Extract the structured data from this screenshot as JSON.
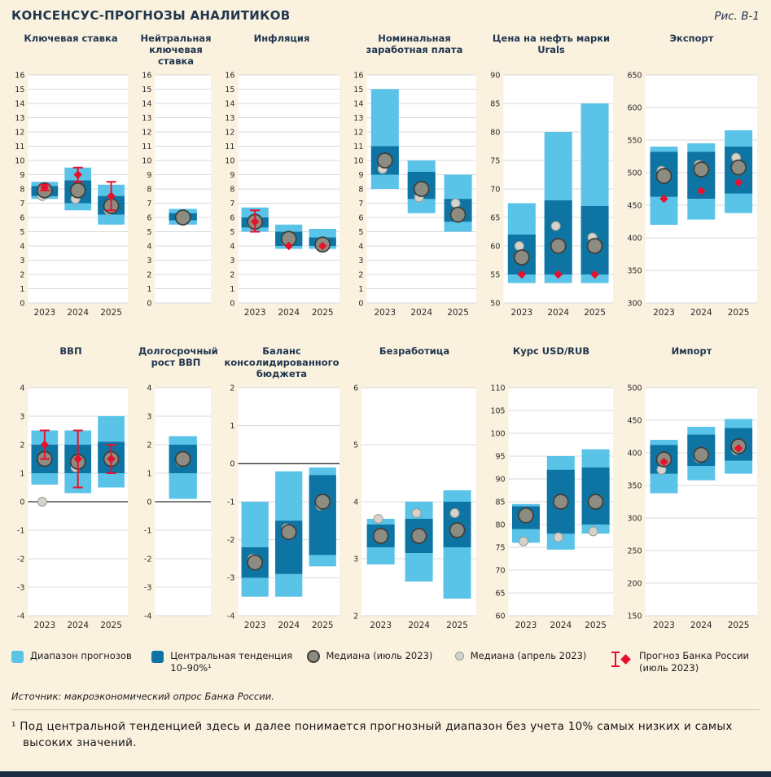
{
  "header": {
    "title": "КОНСЕНСУС-ПРОГНОЗЫ АНАЛИТИКОВ",
    "figure_label": "Рис. В-1"
  },
  "colors": {
    "background": "#fbf1df",
    "range_light": "#5ac3e8",
    "central_dark": "#0e74a4",
    "median_jul_fill": "#8c8c83",
    "median_jul_stroke": "#3f3f39",
    "median_apr_fill": "#d3d3cc",
    "median_apr_stroke": "#9a9a94",
    "cbr_red": "#e8112d",
    "title_navy": "#20374e",
    "grid": "#d8d8d8",
    "zero_line": "#2f2f2f",
    "footer_bar": "#1b2c40",
    "plot_bg": "#ffffff"
  },
  "legend": {
    "range": "Диапазон прогнозов",
    "central": "Центральная тенденция 10–90%¹",
    "median_jul": "Медиана (июль 2023)",
    "median_apr": "Медиана (апрель 2023)",
    "cbr": "Прогноз Банка России (июль 2023)"
  },
  "source": "Источник: макроэкономический опрос Банка России.",
  "footnote": "¹ Под центральной тенденцией здесь и далее понимается прогнозный диапазон без учета 10% самых низких и самых высоких значений.",
  "chart_data": [
    {
      "type": "range-bar",
      "title": "Ключевая ставка",
      "ylim": [
        0,
        16
      ],
      "ytick": 1,
      "categories": [
        "2023",
        "2024",
        "2025"
      ],
      "series": [
        {
          "category": "2023",
          "range": [
            7.3,
            8.5
          ],
          "central": [
            7.5,
            8.2
          ],
          "median_jul": 7.9,
          "median_apr": 7.5,
          "cbr": {
            "low": 7.9,
            "high": 8.3,
            "mid": 8.1
          }
        },
        {
          "category": "2024",
          "range": [
            6.5,
            9.5
          ],
          "central": [
            7.0,
            8.6
          ],
          "median_jul": 7.9,
          "median_apr": 7.3,
          "cbr": {
            "low": 8.5,
            "high": 9.5,
            "mid": 9.0
          }
        },
        {
          "category": "2025",
          "range": [
            5.5,
            8.3
          ],
          "central": [
            6.2,
            7.5
          ],
          "median_jul": 6.8,
          "median_apr": 6.5,
          "cbr": {
            "low": 6.5,
            "high": 8.5,
            "mid": 7.5
          }
        }
      ]
    },
    {
      "type": "range-bar",
      "title": "Нейтральная ключевая ставка",
      "ylim": [
        0,
        16
      ],
      "ytick": 1,
      "categories": [],
      "series": [
        {
          "category": "",
          "range": [
            5.5,
            6.6
          ],
          "central": [
            5.8,
            6.3
          ],
          "median_jul": 6.0,
          "median_apr": 6.0,
          "cbr": null
        }
      ]
    },
    {
      "type": "range-bar",
      "title": "Инфляция",
      "ylim": [
        0,
        16
      ],
      "ytick": 1,
      "categories": [
        "2023",
        "2024",
        "2025"
      ],
      "series": [
        {
          "category": "2023",
          "range": [
            5.0,
            6.7
          ],
          "central": [
            5.3,
            6.0
          ],
          "median_jul": 5.7,
          "median_apr": 5.5,
          "cbr": {
            "low": 5.0,
            "high": 6.5,
            "mid": 5.7
          }
        },
        {
          "category": "2024",
          "range": [
            3.8,
            5.5
          ],
          "central": [
            4.0,
            5.0
          ],
          "median_jul": 4.5,
          "median_apr": 4.3,
          "cbr": {
            "low": null,
            "high": null,
            "mid": 4.0
          }
        },
        {
          "category": "2025",
          "range": [
            3.8,
            5.2
          ],
          "central": [
            4.0,
            4.6
          ],
          "median_jul": 4.1,
          "median_apr": 4.0,
          "cbr": {
            "low": null,
            "high": null,
            "mid": 4.0
          }
        }
      ]
    },
    {
      "type": "range-bar",
      "title": "Номинальная заработная плата",
      "ylim": [
        0,
        16
      ],
      "ytick": 1,
      "categories": [
        "2023",
        "2024",
        "2025"
      ],
      "series": [
        {
          "category": "2023",
          "range": [
            8.0,
            15.0
          ],
          "central": [
            9.0,
            11.0
          ],
          "median_jul": 10.0,
          "median_apr": 9.4,
          "cbr": null
        },
        {
          "category": "2024",
          "range": [
            6.3,
            10.0
          ],
          "central": [
            7.3,
            9.2
          ],
          "median_jul": 8.0,
          "median_apr": 7.4,
          "cbr": null
        },
        {
          "category": "2025",
          "range": [
            5.0,
            9.0
          ],
          "central": [
            5.7,
            7.3
          ],
          "median_jul": 6.2,
          "median_apr": 7.0,
          "cbr": null
        }
      ]
    },
    {
      "type": "range-bar",
      "title": "Цена на нефть марки Urals",
      "ylim": [
        50,
        90
      ],
      "ytick": 5,
      "categories": [
        "2023",
        "2024",
        "2025"
      ],
      "series": [
        {
          "category": "2023",
          "range": [
            53.5,
            67.5
          ],
          "central": [
            55.0,
            62.0
          ],
          "median_jul": 58.0,
          "median_apr": 60.0,
          "cbr": {
            "low": null,
            "high": null,
            "mid": 55.0
          }
        },
        {
          "category": "2024",
          "range": [
            53.5,
            80.0
          ],
          "central": [
            55.0,
            68.0
          ],
          "median_jul": 60.0,
          "median_apr": 63.5,
          "cbr": {
            "low": null,
            "high": null,
            "mid": 55.0
          }
        },
        {
          "category": "2025",
          "range": [
            53.5,
            85.0
          ],
          "central": [
            55.0,
            67.0
          ],
          "median_jul": 60.0,
          "median_apr": 61.5,
          "cbr": {
            "low": null,
            "high": null,
            "mid": 55.0
          }
        }
      ]
    },
    {
      "type": "range-bar",
      "title": "Экспорт",
      "ylim": [
        300,
        650
      ],
      "ytick": 50,
      "categories": [
        "2023",
        "2024",
        "2025"
      ],
      "series": [
        {
          "category": "2023",
          "range": [
            420,
            540
          ],
          "central": [
            463,
            532
          ],
          "median_jul": 495,
          "median_apr": 503,
          "cbr": {
            "low": null,
            "high": null,
            "mid": 460
          }
        },
        {
          "category": "2024",
          "range": [
            428,
            545
          ],
          "central": [
            460,
            532
          ],
          "median_jul": 505,
          "median_apr": 512,
          "cbr": {
            "low": null,
            "high": null,
            "mid": 472
          }
        },
        {
          "category": "2025",
          "range": [
            438,
            565
          ],
          "central": [
            468,
            540
          ],
          "median_jul": 508,
          "median_apr": 523,
          "cbr": {
            "low": null,
            "high": null,
            "mid": 485
          }
        }
      ]
    },
    {
      "type": "range-bar",
      "title": "ВВП",
      "ylim": [
        -4,
        4
      ],
      "ytick": 1,
      "categories": [
        "2023",
        "2024",
        "2025"
      ],
      "series": [
        {
          "category": "2023",
          "range": [
            0.6,
            2.5
          ],
          "central": [
            1.0,
            2.0
          ],
          "median_jul": 1.5,
          "median_apr": 0.0,
          "cbr": {
            "low": 1.5,
            "high": 2.5,
            "mid": 2.0
          }
        },
        {
          "category": "2024",
          "range": [
            0.3,
            2.5
          ],
          "central": [
            1.0,
            2.0
          ],
          "median_jul": 1.4,
          "median_apr": 1.2,
          "cbr": {
            "low": 0.5,
            "high": 2.5,
            "mid": 1.5
          }
        },
        {
          "category": "2025",
          "range": [
            0.5,
            3.0
          ],
          "central": [
            1.0,
            2.1
          ],
          "median_jul": 1.5,
          "median_apr": 1.5,
          "cbr": {
            "low": 1.0,
            "high": 2.0,
            "mid": 1.5
          }
        }
      ]
    },
    {
      "type": "range-bar",
      "title": "Долгосрочный рост ВВП",
      "ylim": [
        -4,
        4
      ],
      "ytick": 1,
      "categories": [],
      "series": [
        {
          "category": "",
          "range": [
            0.1,
            2.3
          ],
          "central": [
            1.0,
            2.0
          ],
          "median_jul": 1.5,
          "median_apr": 1.4,
          "cbr": null
        }
      ]
    },
    {
      "type": "range-bar",
      "title": "Баланс консолидированного бюджета",
      "ylim": [
        -4,
        2
      ],
      "ytick": 1,
      "categories": [
        "2023",
        "2024",
        "2025"
      ],
      "series": [
        {
          "category": "2023",
          "range": [
            -3.5,
            -1.0
          ],
          "central": [
            -3.0,
            -2.2
          ],
          "median_jul": -2.6,
          "median_apr": -2.5,
          "cbr": null
        },
        {
          "category": "2024",
          "range": [
            -3.5,
            -0.2
          ],
          "central": [
            -2.9,
            -1.5
          ],
          "median_jul": -1.8,
          "median_apr": -1.7,
          "cbr": null
        },
        {
          "category": "2025",
          "range": [
            -2.7,
            -0.1
          ],
          "central": [
            -2.4,
            -0.3
          ],
          "median_jul": -1.0,
          "median_apr": -1.1,
          "cbr": null
        }
      ]
    },
    {
      "type": "range-bar",
      "title": "Безработица",
      "ylim": [
        2,
        6
      ],
      "ytick": 1,
      "categories": [
        "2023",
        "2024",
        "2025"
      ],
      "series": [
        {
          "category": "2023",
          "range": [
            2.9,
            3.7
          ],
          "central": [
            3.2,
            3.6
          ],
          "median_jul": 3.4,
          "median_apr": 3.7,
          "cbr": null
        },
        {
          "category": "2024",
          "range": [
            2.6,
            4.0
          ],
          "central": [
            3.1,
            3.7
          ],
          "median_jul": 3.4,
          "median_apr": 3.8,
          "cbr": null
        },
        {
          "category": "2025",
          "range": [
            2.3,
            4.2
          ],
          "central": [
            3.2,
            4.0
          ],
          "median_jul": 3.5,
          "median_apr": 3.8,
          "cbr": null
        }
      ]
    },
    {
      "type": "range-bar",
      "title": "Курс USD/RUB",
      "ylim": [
        60,
        110
      ],
      "ytick": 5,
      "categories": [
        "2023",
        "2024",
        "2025"
      ],
      "series": [
        {
          "category": "2023",
          "range": [
            76.0,
            84.5
          ],
          "central": [
            79.0,
            84.0
          ],
          "median_jul": 82.0,
          "median_apr": 76.3,
          "cbr": null
        },
        {
          "category": "2024",
          "range": [
            74.5,
            95.0
          ],
          "central": [
            78.0,
            92.0
          ],
          "median_jul": 85.0,
          "median_apr": 77.2,
          "cbr": null
        },
        {
          "category": "2025",
          "range": [
            78.0,
            96.5
          ],
          "central": [
            80.0,
            92.5
          ],
          "median_jul": 85.0,
          "median_apr": 78.5,
          "cbr": null
        }
      ]
    },
    {
      "type": "range-bar",
      "title": "Импорт",
      "ylim": [
        150,
        500
      ],
      "ytick": 50,
      "categories": [
        "2023",
        "2024",
        "2025"
      ],
      "series": [
        {
          "category": "2023",
          "range": [
            338,
            420
          ],
          "central": [
            368,
            412
          ],
          "median_jul": 390,
          "median_apr": 374,
          "cbr": {
            "low": null,
            "high": null,
            "mid": 386
          }
        },
        {
          "category": "2024",
          "range": [
            358,
            440
          ],
          "central": [
            380,
            428
          ],
          "median_jul": 397,
          "median_apr": 392,
          "cbr": null
        },
        {
          "category": "2025",
          "range": [
            368,
            452
          ],
          "central": [
            388,
            438
          ],
          "median_jul": 410,
          "median_apr": 404,
          "cbr": {
            "low": null,
            "high": null,
            "mid": 407
          }
        }
      ]
    }
  ]
}
